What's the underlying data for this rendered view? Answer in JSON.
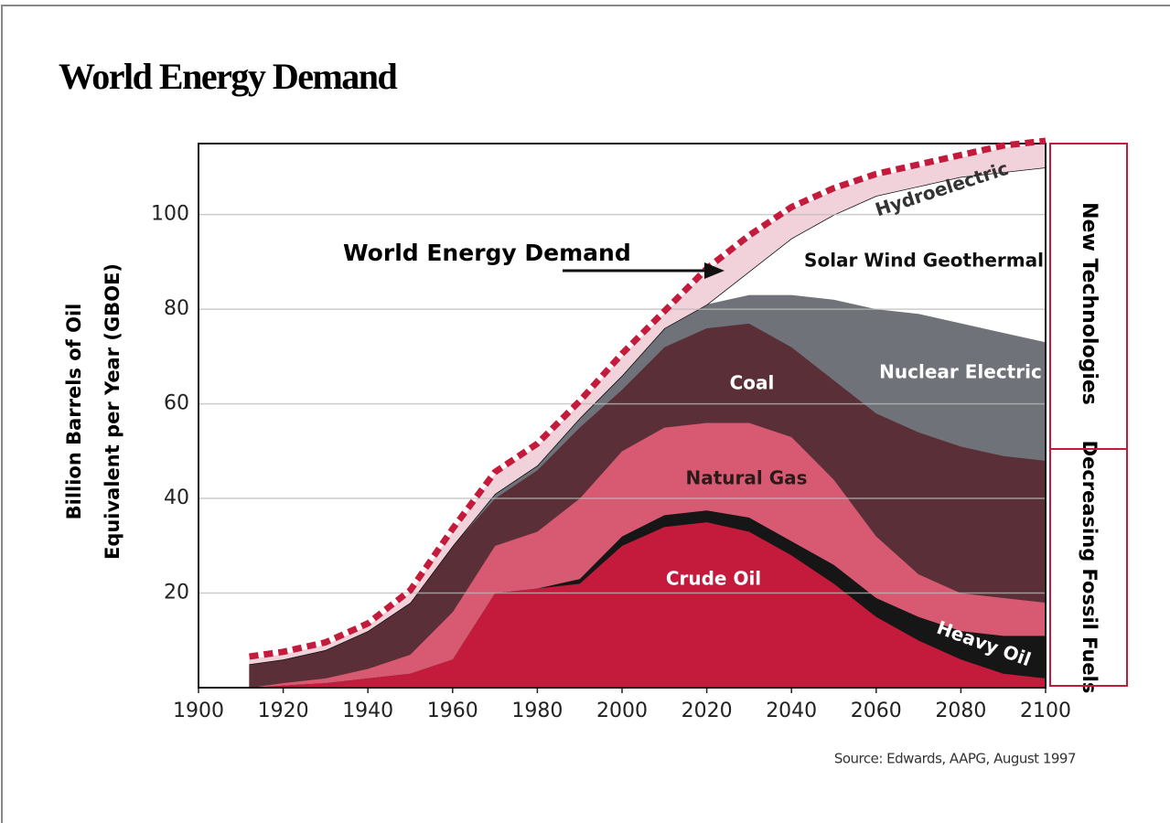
{
  "chart_data": {
    "type": "stacked_area",
    "title": "World Energy Demand",
    "y_label": [
      "Billion Barrels of Oil",
      "Equivalent per Year (GBOE)"
    ],
    "source": "Source: Edwards, AAPG, August 1997",
    "side_labels": [
      "New Technologies",
      "Decreasing Fossil Fuels"
    ],
    "x": [
      1912,
      1920,
      1930,
      1940,
      1950,
      1960,
      1970,
      1980,
      1990,
      2000,
      2010,
      2020,
      2030,
      2040,
      2050,
      2060,
      2070,
      2080,
      2090,
      2100
    ],
    "xlim": [
      1900,
      2100
    ],
    "xticks": [
      1900,
      1920,
      1940,
      1960,
      1980,
      2000,
      2020,
      2040,
      2060,
      2080,
      2100
    ],
    "ylim": [
      0,
      115
    ],
    "yticks": [
      20,
      40,
      60,
      80,
      100
    ],
    "grid": true,
    "series": [
      {
        "name": "Crude Oil",
        "color": "#c41a3b",
        "values": [
          0,
          0.5,
          1,
          2,
          3,
          6,
          20,
          21,
          22,
          30,
          34,
          35,
          33,
          28,
          22,
          15,
          10,
          6,
          3,
          2
        ]
      },
      {
        "name": "Heavy Oil",
        "color": "#161616",
        "values": [
          0,
          0,
          0,
          0,
          0,
          0,
          0,
          0,
          1,
          2,
          2.5,
          2.5,
          3,
          3,
          4,
          4,
          5,
          6,
          8,
          9
        ]
      },
      {
        "name": "Natural Gas",
        "color": "#d75a72",
        "values": [
          0,
          0.5,
          1,
          2,
          4,
          10,
          10,
          12,
          17,
          18,
          18.5,
          18.5,
          20,
          22,
          18,
          13,
          9,
          8,
          8,
          7
        ]
      },
      {
        "name": "Coal",
        "color": "#5a2f37",
        "values": [
          5,
          5,
          6,
          8,
          11,
          14,
          10,
          13,
          15,
          13,
          17,
          20,
          21,
          19,
          21,
          26,
          30,
          31,
          30,
          30
        ]
      },
      {
        "name": "Nuclear Electric",
        "color": "#6f7379",
        "values": [
          0,
          0,
          0,
          0,
          0,
          0,
          1,
          1,
          2,
          3,
          4,
          5,
          6,
          11,
          17,
          22,
          25,
          26,
          26,
          25
        ]
      },
      {
        "name": "Solar Wind Geothermal",
        "color": "#ffffff",
        "values": [
          0,
          0,
          0,
          0,
          0,
          0,
          0,
          0,
          0,
          0,
          0,
          0,
          5,
          12,
          18,
          24,
          27,
          31,
          34,
          37
        ]
      },
      {
        "name": "Hydroelectric",
        "color": "#f2d2da",
        "values": [
          1,
          1,
          1,
          1,
          2,
          3,
          4,
          4,
          3,
          4,
          3,
          7,
          7,
          6,
          5,
          4,
          4,
          4,
          5,
          5
        ]
      }
    ],
    "demand": {
      "name": "World Energy Demand",
      "color": "#c41a3b",
      "values": [
        6,
        7,
        9,
        13,
        20,
        33,
        45,
        51,
        60,
        70,
        79,
        88,
        95,
        101,
        105,
        108,
        110,
        112,
        114,
        115
      ]
    }
  }
}
